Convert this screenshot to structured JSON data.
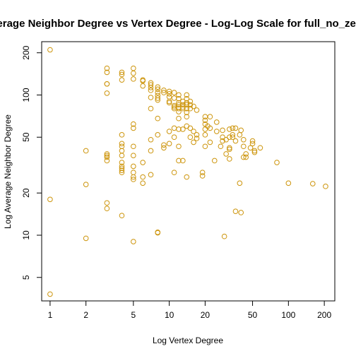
{
  "chart_data": {
    "type": "scatter",
    "title": "Average Neighbor Degree vs Vertex Degree - Log-Log Scale for full_no_zeros",
    "xlabel": "Log Vertex Degree",
    "ylabel": "Log Average Neighbor Degree",
    "x_scale": "log",
    "y_scale": "log",
    "xlim": [
      0.85,
      245
    ],
    "ylim": [
      3.4,
      240
    ],
    "x_ticks": [
      1,
      2,
      5,
      10,
      20,
      50,
      100,
      200
    ],
    "y_ticks": [
      5,
      10,
      20,
      50,
      100,
      200
    ],
    "grid": false,
    "marker_color": "#cd950c",
    "points": [
      [
        1,
        210
      ],
      [
        1,
        18
      ],
      [
        1,
        3.8
      ],
      [
        2,
        40
      ],
      [
        2,
        23
      ],
      [
        2,
        9.5
      ],
      [
        3,
        155
      ],
      [
        3,
        145
      ],
      [
        3,
        120
      ],
      [
        3,
        120
      ],
      [
        3,
        103
      ],
      [
        3,
        38
      ],
      [
        3,
        37
      ],
      [
        3,
        36
      ],
      [
        3,
        34
      ],
      [
        3,
        17
      ],
      [
        3,
        15.5
      ],
      [
        4,
        145
      ],
      [
        4,
        140
      ],
      [
        4,
        128
      ],
      [
        4,
        52
      ],
      [
        4,
        45
      ],
      [
        4,
        43
      ],
      [
        4,
        40
      ],
      [
        4,
        37
      ],
      [
        4,
        33
      ],
      [
        4,
        31
      ],
      [
        4,
        30
      ],
      [
        4,
        29
      ],
      [
        4,
        28
      ],
      [
        4,
        13.8
      ],
      [
        5,
        155
      ],
      [
        5,
        143
      ],
      [
        5,
        130
      ],
      [
        5,
        62
      ],
      [
        5,
        58
      ],
      [
        5,
        43
      ],
      [
        5,
        37
      ],
      [
        5,
        31
      ],
      [
        5,
        28
      ],
      [
        5,
        26
      ],
      [
        5,
        25
      ],
      [
        5,
        9
      ],
      [
        6,
        128
      ],
      [
        6,
        126
      ],
      [
        6,
        116
      ],
      [
        6,
        33
      ],
      [
        6,
        26
      ],
      [
        6,
        23.5
      ],
      [
        7,
        122
      ],
      [
        7,
        118
      ],
      [
        7,
        113
      ],
      [
        7,
        108
      ],
      [
        7,
        96
      ],
      [
        7,
        80
      ],
      [
        7,
        48
      ],
      [
        7,
        40
      ],
      [
        7,
        27
      ],
      [
        8,
        114
      ],
      [
        8,
        110
      ],
      [
        8,
        104
      ],
      [
        8,
        99
      ],
      [
        8,
        95
      ],
      [
        8,
        92
      ],
      [
        8,
        68
      ],
      [
        8,
        52
      ],
      [
        8,
        10.5
      ],
      [
        8,
        10.4
      ],
      [
        9,
        108
      ],
      [
        9,
        104
      ],
      [
        9,
        44
      ],
      [
        9,
        42
      ],
      [
        10,
        106
      ],
      [
        10,
        102
      ],
      [
        10,
        97
      ],
      [
        10,
        90
      ],
      [
        10,
        88
      ],
      [
        10,
        55
      ],
      [
        10,
        45
      ],
      [
        11,
        104
      ],
      [
        11,
        95
      ],
      [
        11,
        84
      ],
      [
        11,
        82
      ],
      [
        11,
        80
      ],
      [
        11,
        58
      ],
      [
        11,
        50
      ],
      [
        11,
        28
      ],
      [
        12,
        100
      ],
      [
        12,
        94
      ],
      [
        12,
        88
      ],
      [
        12,
        85
      ],
      [
        12,
        82
      ],
      [
        12,
        80
      ],
      [
        12,
        76
      ],
      [
        12,
        68
      ],
      [
        12,
        57
      ],
      [
        12,
        43
      ],
      [
        12,
        34
      ],
      [
        13,
        90
      ],
      [
        13,
        85
      ],
      [
        13,
        82
      ],
      [
        13,
        80
      ],
      [
        13,
        57
      ],
      [
        13,
        34
      ],
      [
        14,
        100
      ],
      [
        14,
        94
      ],
      [
        14,
        88
      ],
      [
        14,
        85
      ],
      [
        14,
        80
      ],
      [
        14,
        75
      ],
      [
        14,
        70
      ],
      [
        14,
        60
      ],
      [
        14,
        26
      ],
      [
        15,
        90
      ],
      [
        15,
        85
      ],
      [
        15,
        80
      ],
      [
        15,
        58
      ],
      [
        15,
        50
      ],
      [
        16,
        83
      ],
      [
        16,
        55
      ],
      [
        16,
        46
      ],
      [
        17,
        78
      ],
      [
        17,
        52
      ],
      [
        17,
        49
      ],
      [
        19,
        28
      ],
      [
        19,
        26.5
      ],
      [
        20,
        70
      ],
      [
        20,
        66
      ],
      [
        20,
        62
      ],
      [
        20,
        57
      ],
      [
        20,
        52
      ],
      [
        20,
        43
      ],
      [
        21,
        60
      ],
      [
        22,
        70
      ],
      [
        22,
        58
      ],
      [
        22,
        46
      ],
      [
        24,
        34
      ],
      [
        25,
        64
      ],
      [
        25,
        55
      ],
      [
        27,
        43
      ],
      [
        28,
        56
      ],
      [
        28,
        50
      ],
      [
        28,
        47
      ],
      [
        29,
        9.8
      ],
      [
        30,
        48
      ],
      [
        30,
        38
      ],
      [
        32,
        57
      ],
      [
        32,
        50
      ],
      [
        32,
        42
      ],
      [
        32,
        41
      ],
      [
        32,
        35
      ],
      [
        34,
        58
      ],
      [
        34,
        52
      ],
      [
        34,
        50
      ],
      [
        36,
        58
      ],
      [
        36,
        47
      ],
      [
        36,
        14.8
      ],
      [
        39,
        52
      ],
      [
        39,
        23.5
      ],
      [
        40,
        56
      ],
      [
        40,
        14.5
      ],
      [
        42,
        48
      ],
      [
        42,
        43
      ],
      [
        42,
        36
      ],
      [
        44,
        38
      ],
      [
        44,
        36
      ],
      [
        48,
        42
      ],
      [
        50,
        47
      ],
      [
        50,
        45
      ],
      [
        52,
        40
      ],
      [
        52,
        39
      ],
      [
        58,
        42
      ],
      [
        80,
        33
      ],
      [
        100,
        23.5
      ],
      [
        160,
        23.3
      ],
      [
        205,
        22.3
      ]
    ]
  }
}
